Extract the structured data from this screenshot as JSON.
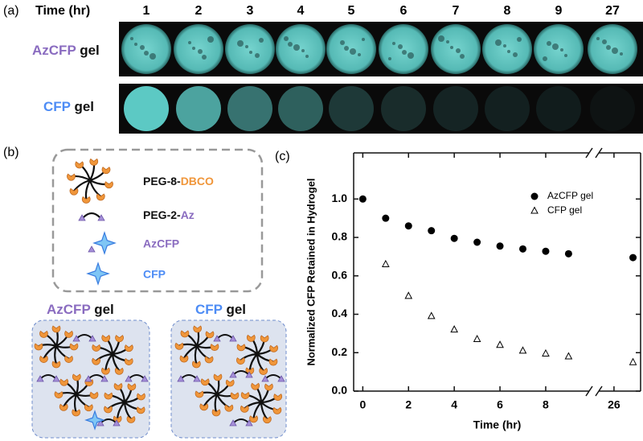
{
  "panel_a": {
    "label": "(a)",
    "time_header": "Time (hr)",
    "times": [
      "1",
      "2",
      "3",
      "4",
      "5",
      "6",
      "7",
      "8",
      "9",
      "27"
    ],
    "rows": [
      {
        "name": "AzCFP",
        "suffix": "gel"
      },
      {
        "name": "CFP",
        "suffix": "gel"
      }
    ]
  },
  "panel_b": {
    "label": "(b)",
    "legend": [
      {
        "parts": [
          "PEG-8-",
          "DBCO"
        ]
      },
      {
        "parts": [
          "PEG-2-",
          "Az"
        ]
      },
      {
        "parts": [
          "AzCFP"
        ]
      },
      {
        "parts": [
          "CFP"
        ]
      }
    ],
    "gels": [
      {
        "name": "AzCFP",
        "suffix": "gel"
      },
      {
        "name": "CFP",
        "suffix": "gel"
      }
    ]
  },
  "panel_c": {
    "label": "(c)"
  },
  "chart_data": {
    "type": "scatter",
    "x_label": "Time (hr)",
    "y_label": "Normalized CFP Retained in Hydrogel",
    "xlim": [
      -0.4,
      27.4
    ],
    "x_break": [
      9.9,
      25.2
    ],
    "xticks": [
      0,
      2,
      4,
      6,
      8,
      26
    ],
    "ylim": [
      0,
      1.24
    ],
    "yticks": [
      {
        "value": 0,
        "label": "0.0"
      },
      0.2,
      0.4,
      0.6,
      0.8,
      {
        "value": 1,
        "label": "1.0"
      }
    ],
    "legend_position": "top-right",
    "series": [
      {
        "name": "AzCFP gel",
        "marker": "circle",
        "color": "#000000",
        "x": [
          0,
          1,
          2,
          3,
          4,
          5,
          6,
          7,
          8,
          9,
          27
        ],
        "values": [
          1.0,
          0.9,
          0.86,
          0.835,
          0.795,
          0.775,
          0.755,
          0.74,
          0.728,
          0.715,
          0.695
        ]
      },
      {
        "name": "CFP gel",
        "marker": "triangle",
        "color": "#000000",
        "x": [
          1,
          2,
          3,
          4,
          5,
          6,
          7,
          8,
          9,
          27
        ],
        "values": [
          0.66,
          0.495,
          0.39,
          0.32,
          0.27,
          0.24,
          0.21,
          0.195,
          0.18,
          0.15
        ]
      }
    ]
  }
}
